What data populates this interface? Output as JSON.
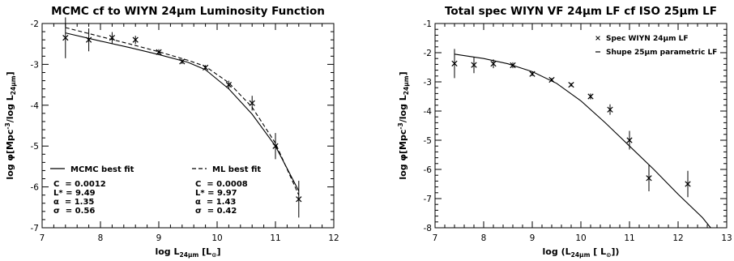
{
  "chart_data": [
    {
      "type": "scatter",
      "title": "MCMC cf to WIYN 24μm Luminosity Function",
      "xlabel": "log L24μm [L⊙]",
      "ylabel": "log φ[Mpc⁻³/log L24μm]",
      "xlim": [
        7,
        12
      ],
      "ylim": [
        -7,
        -2
      ],
      "xticks": [
        7,
        8,
        9,
        10,
        11,
        12
      ],
      "yticks": [
        -7,
        -6,
        -5,
        -4,
        -3,
        -2
      ],
      "grid": false,
      "series": [
        {
          "kind": "points",
          "marker": "x",
          "x": [
            7.4,
            7.8,
            8.2,
            8.6,
            9.0,
            9.4,
            9.8,
            10.2,
            10.6,
            11.0,
            11.4
          ],
          "y": [
            -2.35,
            -2.4,
            -2.35,
            -2.4,
            -2.7,
            -2.93,
            -3.08,
            -3.5,
            -3.95,
            -5.0,
            -6.3
          ],
          "yerr": [
            0.5,
            0.28,
            0.14,
            0.1,
            0.07,
            0.06,
            0.06,
            0.1,
            0.18,
            0.32,
            0.45
          ]
        },
        {
          "name": "MCMC best fit",
          "kind": "line",
          "style": "solid",
          "x": [
            7.4,
            8.0,
            8.5,
            9.0,
            9.5,
            9.8,
            10.2,
            10.6,
            11.0,
            11.4
          ],
          "y": [
            -2.23,
            -2.43,
            -2.59,
            -2.76,
            -2.95,
            -3.13,
            -3.6,
            -4.22,
            -5.0,
            -6.1
          ]
        },
        {
          "name": "ML best fit",
          "kind": "line",
          "style": "dashed",
          "x": [
            7.4,
            8.0,
            8.5,
            9.0,
            9.5,
            9.8,
            10.2,
            10.6,
            11.0,
            11.4
          ],
          "y": [
            -2.1,
            -2.32,
            -2.5,
            -2.69,
            -2.9,
            -3.05,
            -3.45,
            -4.05,
            -4.93,
            -6.2
          ]
        }
      ],
      "legend": {
        "placement": "bottom-left",
        "blocks": [
          {
            "label": "MCMC best fit",
            "style": "solid",
            "rows": [
              "C  = 0.0012",
              "L* = 9.49",
              "α  = 1.35",
              "σ  = 0.56"
            ]
          },
          {
            "label": "ML best fit",
            "style": "dashed",
            "rows": [
              "C  = 0.0008",
              "L* = 9.97",
              "α  = 1.43",
              "σ  = 0.42"
            ]
          }
        ]
      }
    },
    {
      "type": "scatter",
      "title": "Total spec WIYN VF 24μm LF cf ISO 25μm LF",
      "xlabel": "log (L24μm [ L⊙])",
      "ylabel": "log φ[Mpc⁻³/log L24μm]",
      "xlim": [
        7,
        13
      ],
      "ylim": [
        -8,
        -1
      ],
      "xticks": [
        7,
        8,
        9,
        10,
        11,
        12,
        13
      ],
      "yticks": [
        -8,
        -7,
        -6,
        -5,
        -4,
        -3,
        -2,
        -1
      ],
      "grid": false,
      "series": [
        {
          "name": "Spec WIYN 24μm LF",
          "kind": "points",
          "marker": "x",
          "x": [
            7.4,
            7.8,
            8.2,
            8.6,
            9.0,
            9.4,
            9.8,
            10.2,
            10.6,
            11.0,
            11.4,
            12.2
          ],
          "y": [
            -2.37,
            -2.42,
            -2.38,
            -2.43,
            -2.73,
            -2.93,
            -3.1,
            -3.5,
            -3.95,
            -5.0,
            -6.3,
            -6.5
          ],
          "yerr": [
            0.5,
            0.28,
            0.15,
            0.1,
            0.07,
            0.06,
            0.06,
            0.1,
            0.18,
            0.32,
            0.45,
            0.45
          ]
        },
        {
          "name": "Shupe 25μm parametric LF",
          "kind": "line",
          "style": "solid",
          "x": [
            7.4,
            8.0,
            8.5,
            9.0,
            9.5,
            10.0,
            10.5,
            11.0,
            11.5,
            12.0,
            12.5,
            12.67
          ],
          "y": [
            -2.05,
            -2.2,
            -2.38,
            -2.65,
            -3.05,
            -3.65,
            -4.4,
            -5.2,
            -6.0,
            -6.85,
            -7.65,
            -8.0
          ]
        }
      ],
      "legend": {
        "placement": "top-right",
        "entries": [
          {
            "label": "Spec WIYN 24μm LF",
            "marker": "x"
          },
          {
            "label": "Shupe 25μm parametric LF",
            "marker": "-"
          }
        ]
      }
    }
  ]
}
